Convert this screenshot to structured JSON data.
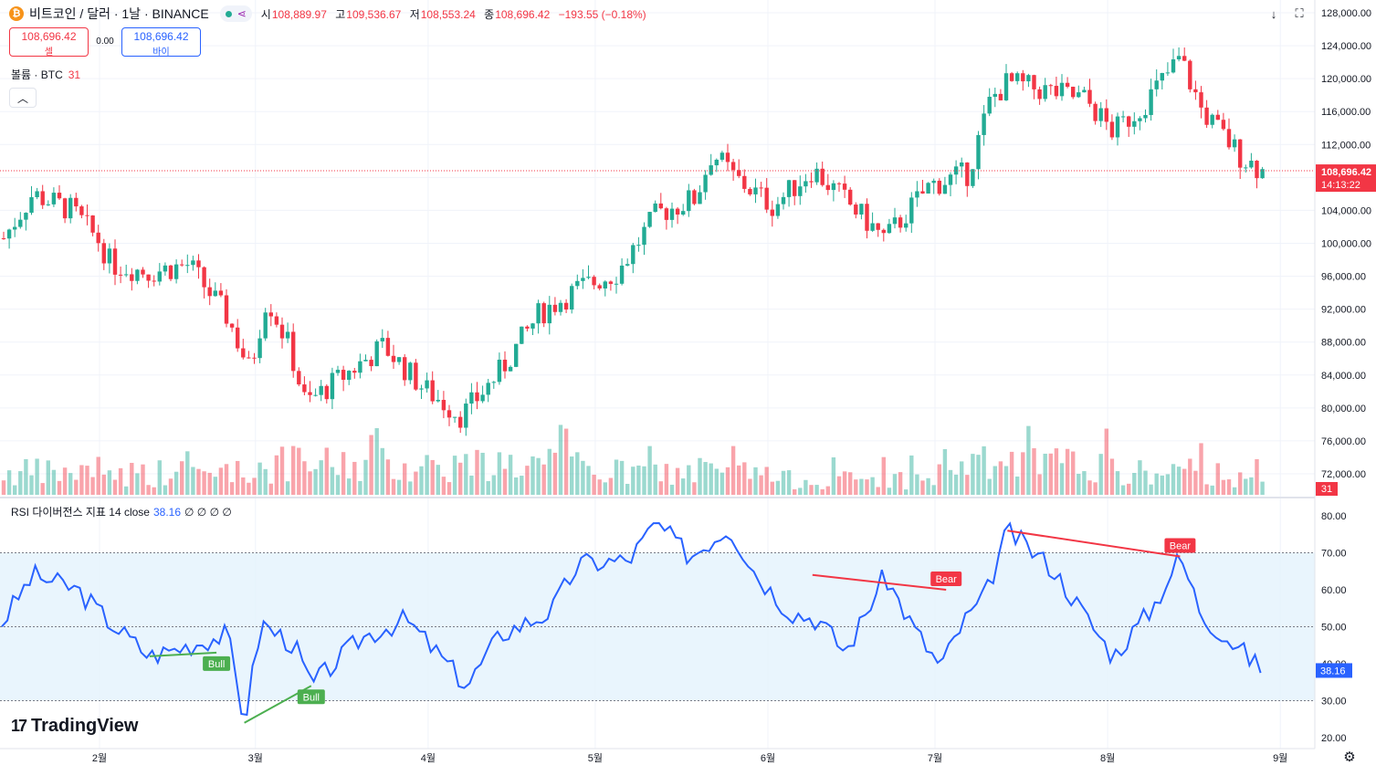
{
  "header": {
    "symbol_title": "비트코인 / 달러 · 1날 · BINANCE",
    "open_label": "시",
    "open": "108,889.97",
    "high_label": "고",
    "high": "109,536.67",
    "low_label": "저",
    "low": "108,553.24",
    "close_label": "종",
    "close": "108,696.42",
    "change": "−193.55 (−0.18%)"
  },
  "trade": {
    "sell_price": "108,696.42",
    "sell_label": "셀",
    "spread": "0.00",
    "buy_price": "108,696.42",
    "buy_label": "바이"
  },
  "volume_legend": {
    "label": "볼륨 · BTC",
    "value": "31"
  },
  "rsi_legend": {
    "label": "RSI 다이버전스 지표 14 close",
    "value": "38.16",
    "extra": "∅ ∅ ∅ ∅"
  },
  "branding": {
    "logo_text": "TradingView"
  },
  "icons": {
    "coin": "bitcoin-icon",
    "status": "green-dot-icon",
    "share": "share-icon",
    "down": "arrow-down-icon",
    "fullscreen": "fullscreen-icon",
    "settings": "gear-icon",
    "collapse": "chevron-up-icon"
  },
  "colors": {
    "up": "#22ab94",
    "down": "#f23645",
    "rsi_line": "#2962ff",
    "bull": "#4caf50",
    "bear": "#f23645",
    "rsi_band": "#e3f2fd"
  },
  "chart_data": {
    "type": "candlestick",
    "x_ticks": [
      "2월",
      "3월",
      "4월",
      "5월",
      "6월",
      "7월",
      "8월",
      "9월"
    ],
    "price_axis": {
      "ticks": [
        "128,000.00",
        "124,000.00",
        "120,000.00",
        "116,000.00",
        "112,000.00",
        "108,000.00",
        "104,000.00",
        "100,000.00",
        "96,000.00",
        "92,000.00",
        "88,000.00",
        "84,000.00",
        "80,000.00",
        "76,000.00",
        "72,000.00"
      ],
      "ylim": [
        70000,
        129000
      ]
    },
    "last_price": "108,696.42",
    "countdown": "14:13:22",
    "volume_last": "31",
    "price_series": [
      {
        "month": "2025-01-14",
        "close": 99800
      },
      {
        "month": "2025-01-20",
        "close": 106000
      },
      {
        "month": "2025-01-27",
        "close": 104000
      },
      {
        "month": "2025-02-01",
        "close": 100200
      },
      {
        "month": "2025-02-03",
        "close": 97500
      },
      {
        "month": "2025-02-10",
        "close": 96500
      },
      {
        "month": "2025-02-17",
        "close": 97400
      },
      {
        "month": "2025-02-24",
        "close": 91000
      },
      {
        "month": "2025-02-28",
        "close": 84500
      },
      {
        "month": "2025-03-03",
        "close": 93500
      },
      {
        "month": "2025-03-07",
        "close": 87500
      },
      {
        "month": "2025-03-10",
        "close": 80500
      },
      {
        "month": "2025-03-17",
        "close": 84000
      },
      {
        "month": "2025-03-24",
        "close": 87500
      },
      {
        "month": "2025-03-31",
        "close": 82500
      },
      {
        "month": "2025-04-07",
        "close": 79000
      },
      {
        "month": "2025-04-14",
        "close": 84500
      },
      {
        "month": "2025-04-21",
        "close": 91500
      },
      {
        "month": "2025-04-28",
        "close": 94500
      },
      {
        "month": "2025-05-05",
        "close": 96500
      },
      {
        "month": "2025-05-12",
        "close": 103500
      },
      {
        "month": "2025-05-19",
        "close": 105500
      },
      {
        "month": "2025-05-22",
        "close": 111000
      },
      {
        "month": "2025-05-26",
        "close": 108000
      },
      {
        "month": "2025-06-02",
        "close": 104500
      },
      {
        "month": "2025-06-09",
        "close": 109000
      },
      {
        "month": "2025-06-16",
        "close": 104500
      },
      {
        "month": "2025-06-22",
        "close": 100500
      },
      {
        "month": "2025-06-30",
        "close": 107000
      },
      {
        "month": "2025-07-07",
        "close": 108500
      },
      {
        "month": "2025-07-11",
        "close": 117500
      },
      {
        "month": "2025-07-14",
        "close": 119500
      },
      {
        "month": "2025-07-21",
        "close": 118500
      },
      {
        "month": "2025-07-28",
        "close": 117500
      },
      {
        "month": "2025-08-02",
        "close": 113500
      },
      {
        "month": "2025-08-07",
        "close": 116500
      },
      {
        "month": "2025-08-14",
        "close": 122500
      },
      {
        "month": "2025-08-18",
        "close": 116000
      },
      {
        "month": "2025-08-25",
        "close": 110500
      },
      {
        "month": "2025-08-29",
        "close": 108696
      }
    ],
    "volume_series": [
      {
        "month": "2025-01",
        "level": "medium"
      },
      {
        "month": "2025-02",
        "level": "medium"
      },
      {
        "month": "2025-03",
        "level": "high"
      },
      {
        "month": "2025-04",
        "level": "high"
      },
      {
        "month": "2025-05",
        "level": "medium"
      },
      {
        "month": "2025-06",
        "level": "low"
      },
      {
        "month": "2025-07",
        "level": "high"
      },
      {
        "month": "2025-08",
        "level": "medium"
      }
    ],
    "rsi": {
      "period": 14,
      "ticks": [
        "80.00",
        "70.00",
        "60.00",
        "50.00",
        "40.00",
        "30.00",
        "20.00"
      ],
      "ylim": [
        18,
        82
      ],
      "upper_band": 70,
      "middle": 50,
      "lower_band": 30,
      "last_value": "38.16",
      "series": [
        {
          "month": "2025-01-14",
          "value": 50
        },
        {
          "month": "2025-01-20",
          "value": 64
        },
        {
          "month": "2025-01-28",
          "value": 60
        },
        {
          "month": "2025-02-03",
          "value": 51
        },
        {
          "month": "2025-02-10",
          "value": 42
        },
        {
          "month": "2025-02-17",
          "value": 45
        },
        {
          "month": "2025-02-24",
          "value": 48
        },
        {
          "month": "2025-02-27",
          "value": 24
        },
        {
          "month": "2025-03-02",
          "value": 51
        },
        {
          "month": "2025-03-08",
          "value": 45
        },
        {
          "month": "2025-03-11",
          "value": 34
        },
        {
          "month": "2025-03-20",
          "value": 47
        },
        {
          "month": "2025-03-28",
          "value": 52
        },
        {
          "month": "2025-04-08",
          "value": 34
        },
        {
          "month": "2025-04-14",
          "value": 48
        },
        {
          "month": "2025-04-23",
          "value": 54
        },
        {
          "month": "2025-04-28",
          "value": 67
        },
        {
          "month": "2025-05-07",
          "value": 68
        },
        {
          "month": "2025-05-12",
          "value": 78
        },
        {
          "month": "2025-05-18",
          "value": 69
        },
        {
          "month": "2025-05-25",
          "value": 77
        },
        {
          "month": "2025-05-30",
          "value": 64
        },
        {
          "month": "2025-06-05",
          "value": 54
        },
        {
          "month": "2025-06-10",
          "value": 52
        },
        {
          "month": "2025-06-15",
          "value": 43
        },
        {
          "month": "2025-06-22",
          "value": 64
        },
        {
          "month": "2025-06-27",
          "value": 50
        },
        {
          "month": "2025-07-02",
          "value": 39
        },
        {
          "month": "2025-07-06",
          "value": 51
        },
        {
          "month": "2025-07-10",
          "value": 58
        },
        {
          "month": "2025-07-14",
          "value": 76
        },
        {
          "month": "2025-07-22",
          "value": 66
        },
        {
          "month": "2025-08-02",
          "value": 42
        },
        {
          "month": "2025-08-09",
          "value": 55
        },
        {
          "month": "2025-08-14",
          "value": 69
        },
        {
          "month": "2025-08-18",
          "value": 53
        },
        {
          "month": "2025-08-24",
          "value": 45
        },
        {
          "month": "2025-08-29",
          "value": 38
        }
      ],
      "divergences": [
        {
          "label": "Bull",
          "from": {
            "month": "2025-02-10",
            "value": 42
          },
          "to": {
            "month": "2025-02-22",
            "value": 43
          }
        },
        {
          "label": "Bull",
          "from": {
            "month": "2025-02-27",
            "value": 24
          },
          "to": {
            "month": "2025-03-11",
            "value": 34
          }
        },
        {
          "label": "Bear",
          "from": {
            "month": "2025-06-09",
            "value": 64
          },
          "to": {
            "month": "2025-07-03",
            "value": 60
          }
        },
        {
          "label": "Bear",
          "from": {
            "month": "2025-07-14",
            "value": 76
          },
          "to": {
            "month": "2025-08-14",
            "value": 69
          }
        }
      ]
    }
  }
}
